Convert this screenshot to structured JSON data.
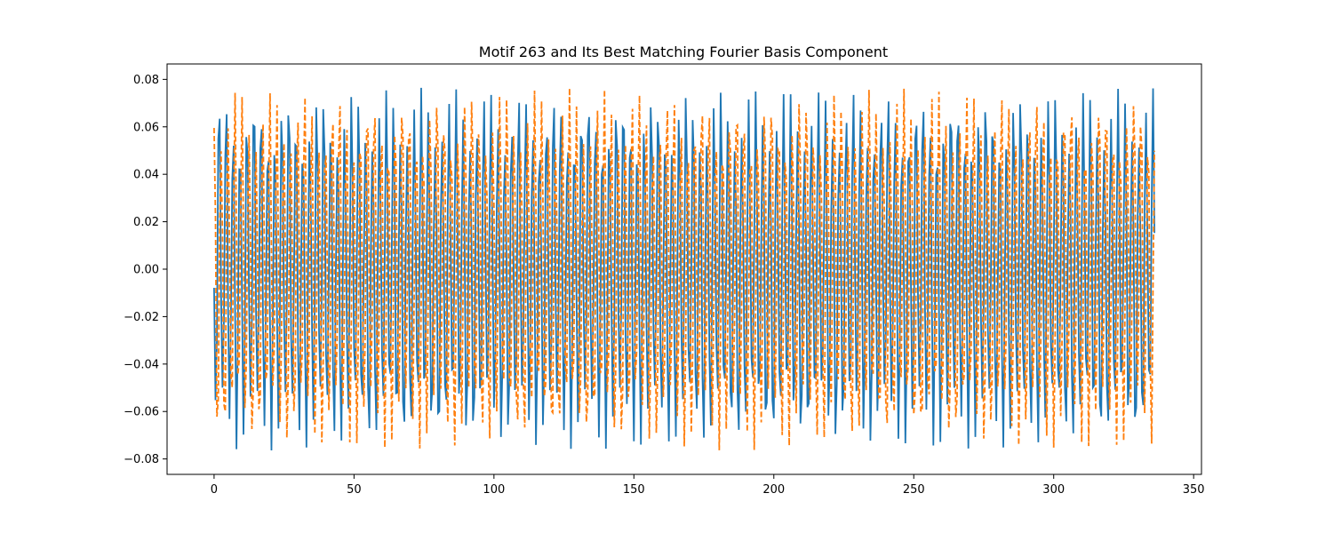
{
  "chart_data": {
    "type": "line",
    "title": "Motif 263 and Its Best Matching Fourier Basis Component",
    "xlabel": "",
    "ylabel": "",
    "xlim": [
      -16.8,
      352.8
    ],
    "ylim": [
      -0.0865,
      0.0865
    ],
    "x_ticks": [
      0,
      50,
      100,
      150,
      200,
      250,
      300,
      350
    ],
    "x_tick_labels": [
      "0",
      "50",
      "100",
      "150",
      "200",
      "250",
      "300",
      "350"
    ],
    "y_ticks": [
      -0.08,
      -0.06,
      -0.04,
      -0.02,
      0.0,
      0.02,
      0.04,
      0.06,
      0.08
    ],
    "y_tick_labels": [
      "−0.08",
      "−0.06",
      "−0.04",
      "−0.02",
      "0.00",
      "0.02",
      "0.04",
      "0.06",
      "0.08"
    ],
    "grid": false,
    "legend": false,
    "series": [
      {
        "style": "solid",
        "color": "#1f77b4",
        "x_start": 0,
        "x_end": 336,
        "step": 0.5,
        "description_values": "oscillating signal, amplitude ~0.075-0.079, period ~2.5 samples",
        "carrier_period": 2.49,
        "amplitude": 0.0765,
        "phase": 3.3,
        "beat_period": 3.15,
        "beat_depth": 0.35
      },
      {
        "style": "dashed",
        "color": "#ff7f0e",
        "x_start": 0,
        "x_end": 336,
        "step": 0.5,
        "carrier_period": 2.49,
        "amplitude": 0.0765,
        "phase": 1.57,
        "beat_period": 3.15,
        "beat_depth": 0.35
      }
    ]
  }
}
